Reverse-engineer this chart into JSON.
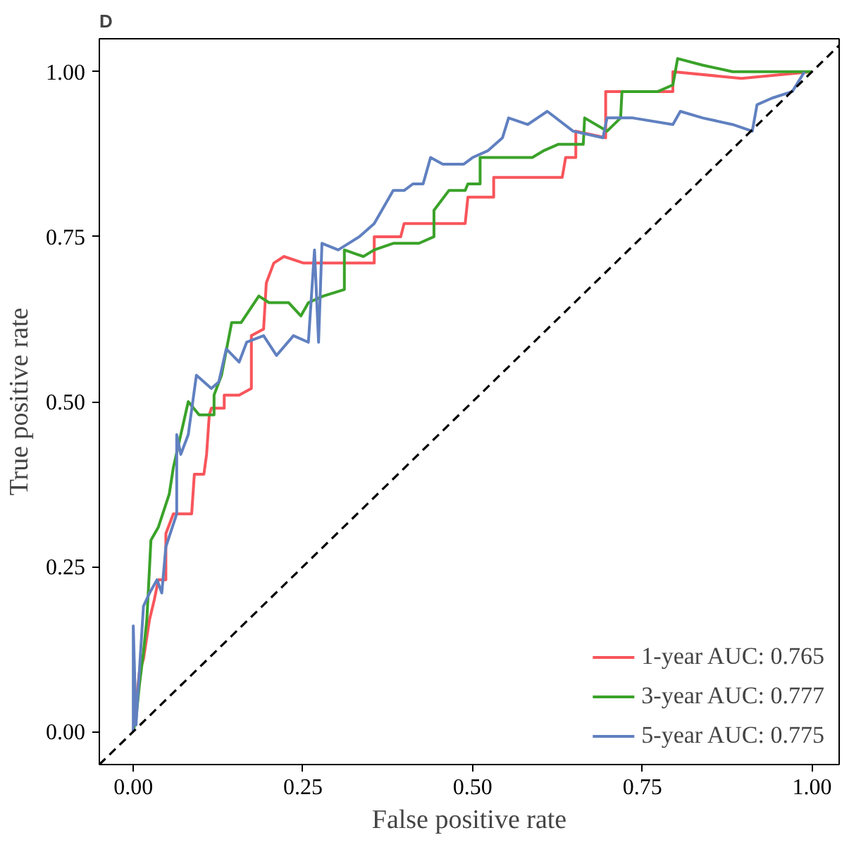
{
  "chart_data": {
    "type": "line",
    "title": "D",
    "xlabel": "False positive rate",
    "ylabel": "True positive rate",
    "xlim": [
      -0.05,
      1.04
    ],
    "ylim": [
      -0.05,
      1.05
    ],
    "xticks": [
      {
        "value": 0,
        "label": "0.00"
      },
      {
        "value": 0.25,
        "label": "0.25"
      },
      {
        "value": 0.5,
        "label": "0.50"
      },
      {
        "value": 0.75,
        "label": "0.75"
      },
      {
        "value": 1,
        "label": "1.00"
      }
    ],
    "yticks": [
      {
        "value": 0,
        "label": "0.00"
      },
      {
        "value": 0.25,
        "label": "0.25"
      },
      {
        "value": 0.5,
        "label": "0.50"
      },
      {
        "value": 0.75,
        "label": "0.75"
      },
      {
        "value": 1,
        "label": "1.00"
      }
    ],
    "grid": false,
    "legend": "bottom right",
    "line_style": "solid",
    "series": [
      {
        "name": "1-year AUC: 0.765",
        "color": "#f8555b",
        "x": [
          0,
          0.009,
          0.015,
          0.024,
          0.031,
          0.037,
          0.048,
          0.048,
          0.059,
          0.086,
          0.09,
          0.104,
          0.108,
          0.112,
          0.115,
          0.134,
          0.134,
          0.156,
          0.174,
          0.174,
          0.192,
          0.196,
          0.207,
          0.222,
          0.251,
          0.355,
          0.355,
          0.394,
          0.399,
          0.489,
          0.493,
          0.531,
          0.531,
          0.632,
          0.637,
          0.652,
          0.652,
          0.696,
          0.696,
          0.795,
          0.795,
          0.896,
          1.0
        ],
        "values": [
          0,
          0.09,
          0.11,
          0.17,
          0.2,
          0.23,
          0.23,
          0.3,
          0.33,
          0.33,
          0.39,
          0.39,
          0.42,
          0.48,
          0.49,
          0.49,
          0.51,
          0.51,
          0.52,
          0.6,
          0.61,
          0.68,
          0.71,
          0.72,
          0.71,
          0.71,
          0.75,
          0.75,
          0.77,
          0.77,
          0.81,
          0.81,
          0.84,
          0.84,
          0.87,
          0.87,
          0.91,
          0.9,
          0.97,
          0.97,
          1.0,
          0.99,
          1.0
        ]
      },
      {
        "name": "3-year AUC: 0.777",
        "color": "#3aa229",
        "x": [
          0,
          0.004,
          0.009,
          0.015,
          0.02,
          0.026,
          0.037,
          0.053,
          0.059,
          0.07,
          0.081,
          0.097,
          0.119,
          0.119,
          0.13,
          0.145,
          0.159,
          0.185,
          0.2,
          0.229,
          0.247,
          0.258,
          0.28,
          0.311,
          0.311,
          0.339,
          0.355,
          0.383,
          0.421,
          0.443,
          0.443,
          0.465,
          0.489,
          0.493,
          0.511,
          0.511,
          0.544,
          0.588,
          0.604,
          0.626,
          0.663,
          0.665,
          0.698,
          0.718,
          0.72,
          0.773,
          0.795,
          0.802,
          0.839,
          0.883,
          0.927,
          1.0
        ],
        "values": [
          0,
          0.02,
          0.07,
          0.12,
          0.17,
          0.29,
          0.31,
          0.36,
          0.4,
          0.45,
          0.5,
          0.48,
          0.48,
          0.51,
          0.54,
          0.62,
          0.62,
          0.66,
          0.65,
          0.65,
          0.63,
          0.65,
          0.66,
          0.67,
          0.73,
          0.72,
          0.73,
          0.74,
          0.74,
          0.75,
          0.79,
          0.82,
          0.82,
          0.83,
          0.83,
          0.87,
          0.87,
          0.87,
          0.88,
          0.89,
          0.89,
          0.93,
          0.91,
          0.93,
          0.97,
          0.97,
          0.98,
          1.02,
          1.01,
          1.0,
          1.0,
          1.0
        ]
      },
      {
        "name": "5-year AUC: 0.775",
        "color": "#6080c0",
        "x": [
          0,
          0,
          0.004,
          0.015,
          0.024,
          0.035,
          0.042,
          0.048,
          0.064,
          0.064,
          0.07,
          0.081,
          0.093,
          0.115,
          0.126,
          0.137,
          0.156,
          0.167,
          0.192,
          0.211,
          0.236,
          0.258,
          0.267,
          0.273,
          0.278,
          0.302,
          0.333,
          0.355,
          0.383,
          0.399,
          0.412,
          0.427,
          0.438,
          0.456,
          0.487,
          0.5,
          0.522,
          0.544,
          0.553,
          0.581,
          0.61,
          0.648,
          0.692,
          0.698,
          0.736,
          0.795,
          0.806,
          0.839,
          0.883,
          0.912,
          0.919,
          0.941,
          0.971,
          0.989
        ],
        "values": [
          0,
          0.16,
          0.01,
          0.19,
          0.21,
          0.23,
          0.21,
          0.28,
          0.33,
          0.45,
          0.42,
          0.45,
          0.54,
          0.52,
          0.53,
          0.58,
          0.56,
          0.59,
          0.6,
          0.57,
          0.6,
          0.59,
          0.73,
          0.59,
          0.74,
          0.73,
          0.75,
          0.77,
          0.82,
          0.82,
          0.83,
          0.83,
          0.87,
          0.86,
          0.86,
          0.87,
          0.88,
          0.9,
          0.93,
          0.92,
          0.94,
          0.91,
          0.9,
          0.93,
          0.93,
          0.92,
          0.94,
          0.93,
          0.92,
          0.91,
          0.95,
          0.96,
          0.97,
          1.0
        ]
      },
      {
        "color": "#000000",
        "line_style": "dashed",
        "x": [
          -0.05,
          1.04
        ],
        "values": [
          -0.05,
          1.04
        ]
      }
    ]
  }
}
